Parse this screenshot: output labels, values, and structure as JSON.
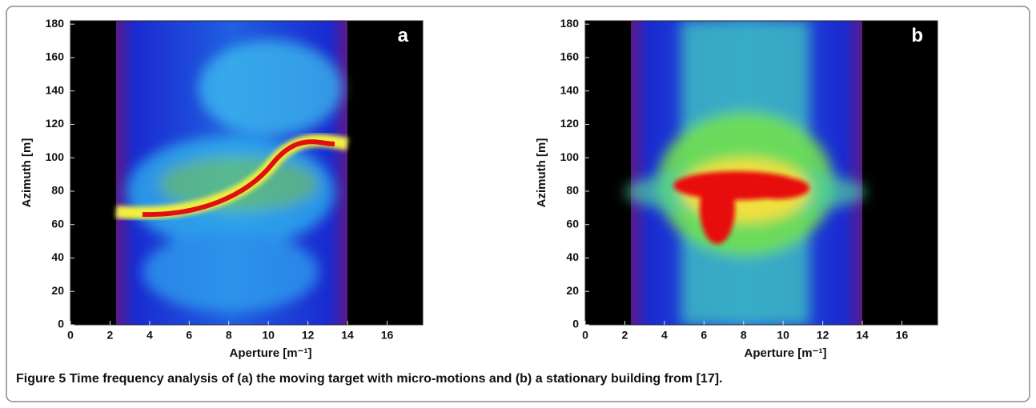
{
  "figure": {
    "panels": [
      {
        "label": "a",
        "xlabel": "Aperture [m⁻¹]",
        "ylabel": "Azimuth [m]",
        "xlim": [
          0,
          17.8
        ],
        "ylim": [
          0,
          182
        ],
        "xticks": [
          0,
          2,
          4,
          6,
          8,
          10,
          12,
          14,
          16
        ],
        "yticks": [
          0,
          20,
          40,
          60,
          80,
          100,
          120,
          140,
          160,
          180
        ]
      },
      {
        "label": "b",
        "xlabel": "Aperture [m⁻¹]",
        "ylabel": "Azimuth [m]",
        "xlim": [
          0,
          17.8
        ],
        "ylim": [
          0,
          182
        ],
        "xticks": [
          0,
          2,
          4,
          6,
          8,
          10,
          12,
          14,
          16
        ],
        "yticks": [
          0,
          20,
          40,
          60,
          80,
          100,
          120,
          140,
          160,
          180
        ]
      }
    ],
    "caption": {
      "label": "Figure 5",
      "text": "Time frequency analysis of (a) the moving target with micro-motions and (b) a stationary building from [17]."
    }
  }
}
